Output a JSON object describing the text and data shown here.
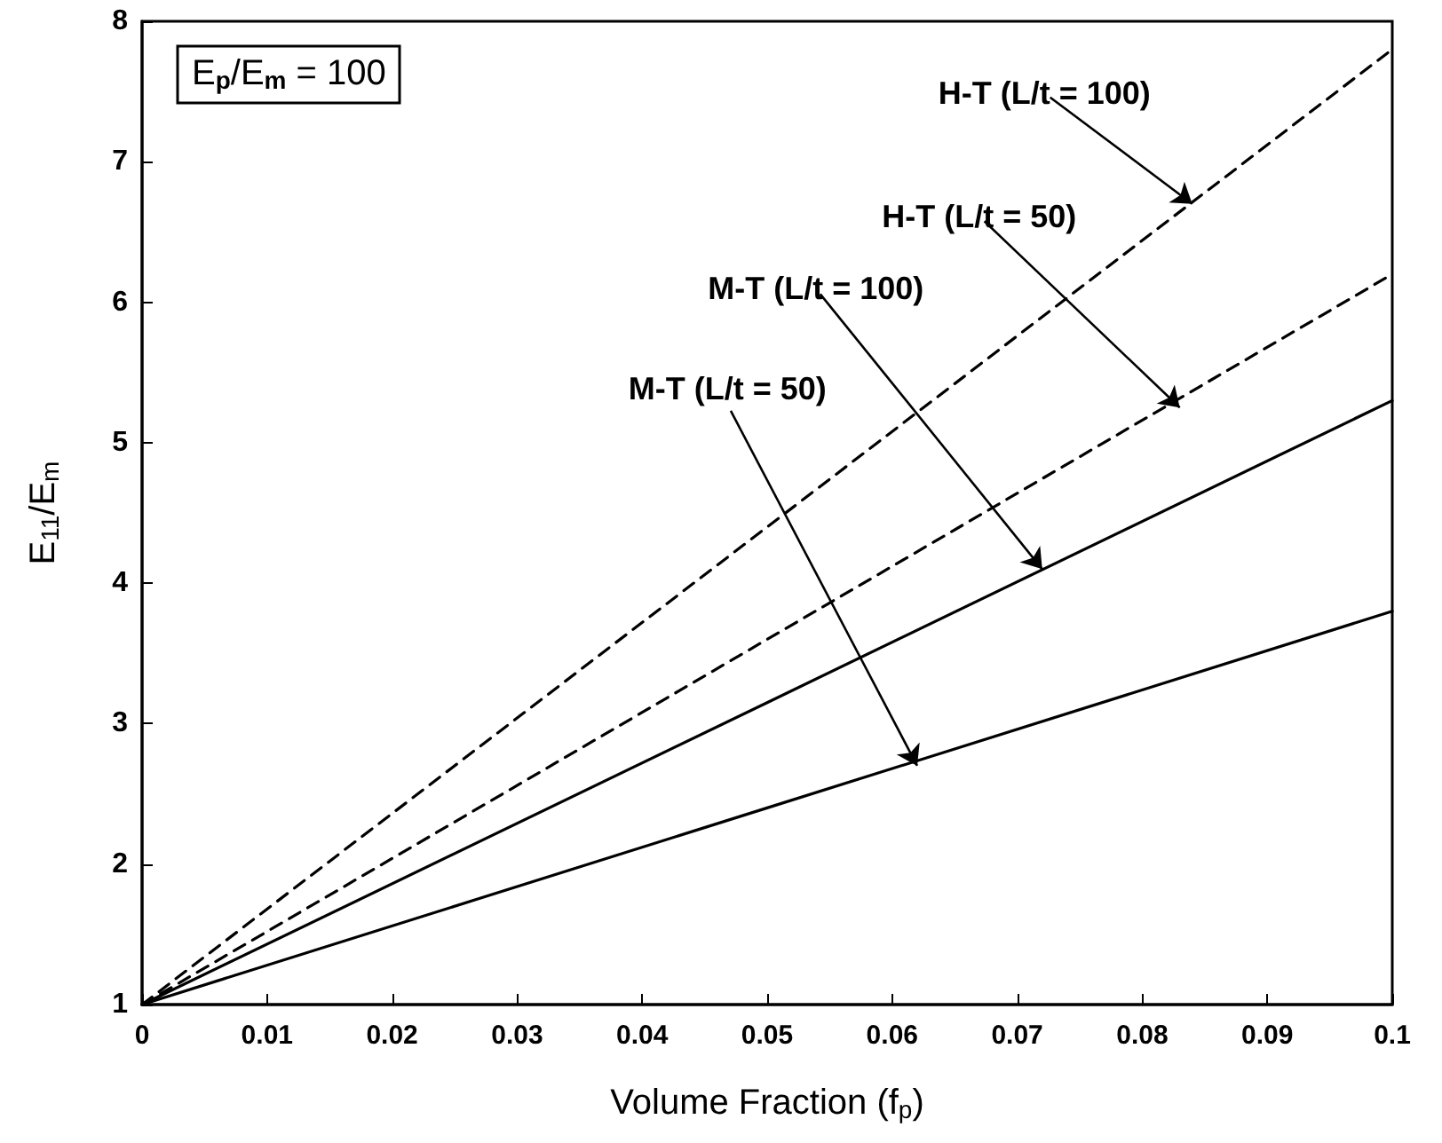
{
  "chart_data": {
    "type": "line",
    "xlabel": "Volume Fraction (f$_{p}$)",
    "ylabel": "E$_{11}$/E$_{m}$",
    "x": [
      0,
      0.05,
      0.1
    ],
    "series": [
      {
        "color": "#000000",
        "line_style": "dashed",
        "values": [
          1,
          4.4,
          7.8
        ]
      },
      {
        "color": "#000000",
        "line_style": "dashed",
        "values": [
          1,
          3.6,
          6.2
        ]
      },
      {
        "color": "#000000",
        "line_style": "solid",
        "values": [
          1,
          3.15,
          5.3
        ]
      },
      {
        "color": "#000000",
        "line_style": "solid",
        "values": [
          1,
          2.4,
          3.8
        ]
      }
    ],
    "annotations": [
      "E$_{p}$/E$_{m}$ = 100",
      {
        "text": "H-T (L/t = 100)",
        "x": 0.084,
        "y": 6.7
      },
      {
        "text": "H-T (L/t = 50)",
        "x": 0.083,
        "y": 5.25
      },
      {
        "text": "M-T (L/t = 100)",
        "x": 0.072,
        "y": 4.1
      },
      {
        "text": "M-T (L/t = 50)",
        "x": 0.062,
        "y": 2.7
      }
    ],
    "xlim": [
      0,
      0.1
    ],
    "xticks": [
      0,
      0.01,
      0.02,
      0.03,
      0.04,
      0.05,
      0.06,
      0.07,
      0.08,
      0.09,
      0.1
    ],
    "ylim": [
      1,
      8
    ],
    "yticks": [
      1,
      2,
      3,
      4,
      5,
      6,
      7,
      8
    ],
    "grid": false,
    "marker": "none"
  }
}
